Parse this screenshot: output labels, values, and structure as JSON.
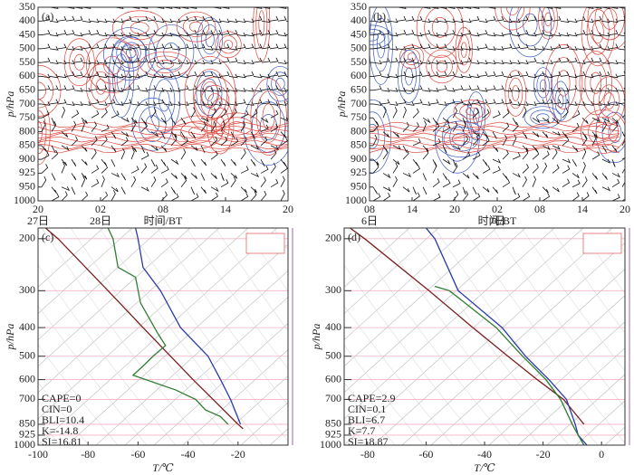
{
  "chart_data": [
    {
      "type": "time-height",
      "label": "(a)",
      "ylabel": "p/hPa",
      "xlabel": "时间/BT",
      "categories": [
        "20",
        "02",
        "08",
        "14",
        "20"
      ],
      "dates": [
        "27日",
        "28日",
        null,
        null,
        null
      ],
      "levels": [
        350,
        400,
        450,
        500,
        550,
        600,
        650,
        700,
        750,
        800,
        850,
        900,
        925,
        950,
        1000
      ]
    },
    {
      "type": "time-height",
      "label": "(b)",
      "ylabel": "p/hPa",
      "xlabel": "时间/BT",
      "categories": [
        "08",
        "14",
        "20",
        "02",
        "08",
        "14",
        "20"
      ],
      "dates": [
        "6日",
        null,
        null,
        "7日",
        null,
        null,
        null
      ],
      "levels": [
        350,
        400,
        450,
        500,
        550,
        600,
        650,
        700,
        750,
        800,
        850,
        900,
        925,
        950,
        1000
      ]
    },
    {
      "type": "skewt",
      "label": "(c)",
      "ylabel": "p/hPa",
      "xlabel": "T/℃",
      "xlim": [
        -100,
        0
      ],
      "xticks": [
        -100,
        -80,
        -60,
        -40,
        -20
      ],
      "ylim": [
        1000,
        184
      ],
      "yticks": [
        200,
        300,
        400,
        500,
        600,
        700,
        850,
        925,
        1000
      ],
      "log_y": true,
      "grid": true,
      "grid_color": "#f4b3c2",
      "series": [
        {
          "color": "#7a1f1f",
          "y": [
            184,
            200,
            300,
            400,
            500,
            600,
            700,
            850,
            880
          ],
          "x": [
            -97,
            -92,
            -72,
            -58,
            -47,
            -38,
            -30,
            -20,
            -18
          ]
        },
        {
          "color": "#2a3aa8",
          "y": [
            184,
            200,
            250,
            300,
            400,
            500,
            600,
            700,
            850
          ],
          "x": [
            -61,
            -60,
            -58,
            -51,
            -43,
            -32,
            -27,
            -23,
            -19
          ]
        },
        {
          "color": "#2e7d32",
          "y": [
            184,
            200,
            250,
            270,
            330,
            420,
            460,
            500,
            540,
            580,
            650,
            700,
            760,
            800,
            850
          ],
          "x": [
            -72,
            -70,
            -68,
            -61,
            -59,
            -52,
            -49,
            -54,
            -58,
            -62,
            -45,
            -37,
            -33,
            -27,
            -24
          ]
        }
      ],
      "annotations": [
        {
          "text": "CAPE=0",
          "color": "#333333"
        },
        {
          "text": "CIN=0",
          "color": "#333333"
        },
        {
          "text": "BLI=10.4",
          "color": "#333333"
        },
        {
          "text": "K=-14.8",
          "color": "#333333"
        },
        {
          "text": "SI=16.81",
          "color": "#333333"
        }
      ]
    },
    {
      "type": "skewt",
      "label": "(d)",
      "ylabel": "p/hPa",
      "xlabel": "T/℃",
      "xlim": [
        -88,
        8
      ],
      "xticks": [
        -80,
        -60,
        -40,
        -20,
        0
      ],
      "ylim": [
        1000,
        184
      ],
      "yticks": [
        200,
        300,
        400,
        500,
        600,
        700,
        850,
        925,
        1000
      ],
      "log_y": true,
      "grid": true,
      "grid_color": "#f4b3c2",
      "series": [
        {
          "color": "#7a1f1f",
          "y": [
            184,
            200,
            300,
            400,
            500,
            600,
            700,
            850
          ],
          "x": [
            -86,
            -81,
            -59,
            -44,
            -32,
            -22,
            -13,
            -6
          ]
        },
        {
          "color": "#2a3aa8",
          "y": [
            184,
            200,
            300,
            400,
            500,
            600,
            700,
            850,
            925,
            1000
          ],
          "x": [
            -60,
            -57,
            -49,
            -34,
            -26,
            -18,
            -12,
            -9,
            -8,
            -5
          ]
        },
        {
          "color": "#2e7d32",
          "y": [
            290,
            300,
            400,
            500,
            600,
            700,
            850,
            925,
            1000
          ],
          "x": [
            -57,
            -52,
            -36,
            -27,
            -19,
            -14,
            -10,
            -8,
            -6
          ]
        }
      ],
      "annotations": [
        {
          "text": "CAPE=2.9",
          "color": "#e8261f"
        },
        {
          "text": "CIN=0.1",
          "color": "#333333"
        },
        {
          "text": "BLI=6.7",
          "color": "#333333"
        },
        {
          "text": "K=7.7",
          "color": "#333333"
        },
        {
          "text": "SI=18.87",
          "color": "#333333"
        }
      ]
    }
  ]
}
